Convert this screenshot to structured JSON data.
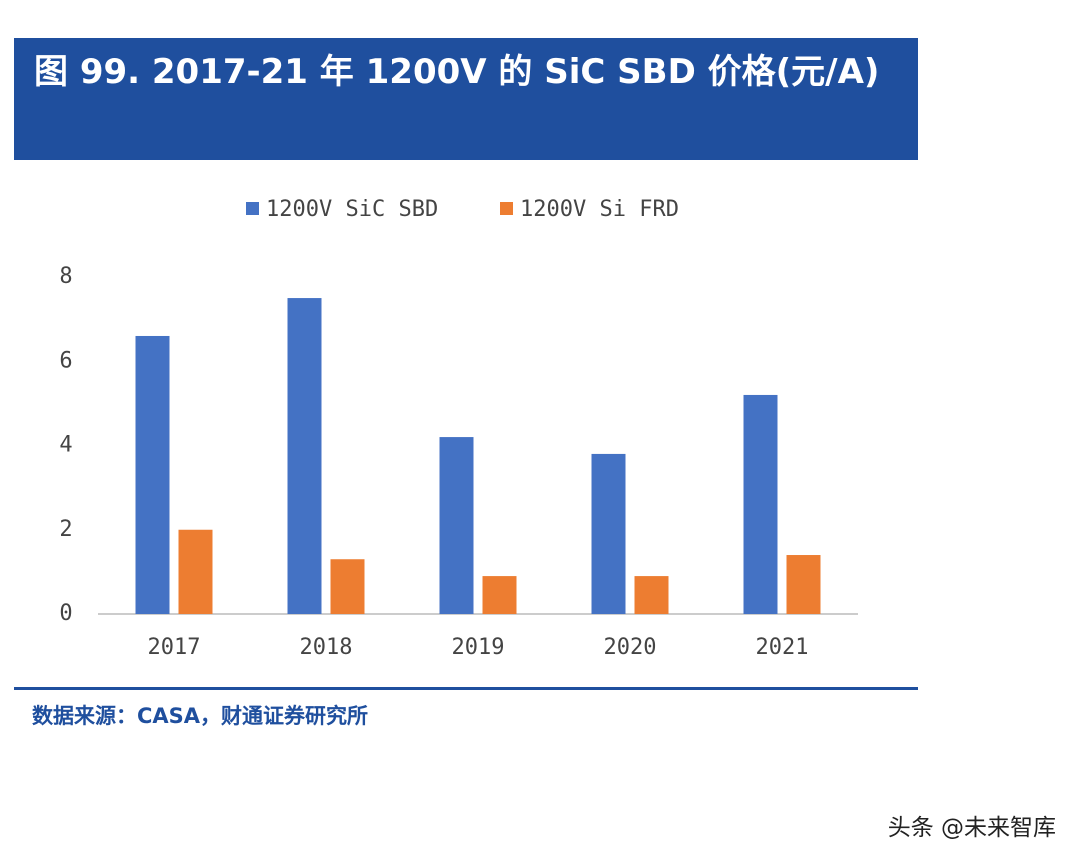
{
  "chart_data": {
    "type": "bar",
    "title": "图 99. 2017-21 年 1200V 的 SiC SBD 价格(元/A)",
    "categories": [
      "2017",
      "2018",
      "2019",
      "2020",
      "2021"
    ],
    "series": [
      {
        "name": "1200V SiC SBD",
        "color": "#4472c4",
        "values": [
          6.6,
          7.5,
          4.2,
          3.8,
          5.2
        ]
      },
      {
        "name": "1200V Si FRD",
        "color": "#ed7d31",
        "values": [
          2.0,
          1.3,
          0.9,
          0.9,
          1.4
        ]
      }
    ],
    "ylim": [
      0,
      8
    ],
    "yticks": [
      0,
      2,
      4,
      6,
      8
    ],
    "grid": false,
    "legend": "top",
    "source": "数据来源：CASA，财通证券研究所",
    "watermark": "头条 @未来智库"
  }
}
